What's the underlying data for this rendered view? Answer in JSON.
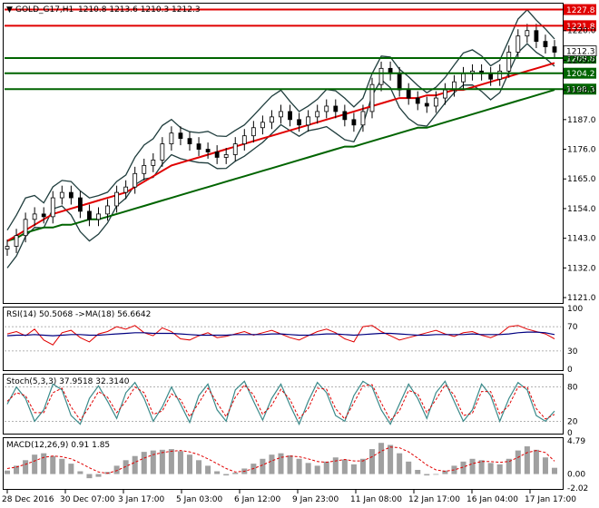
{
  "header": {
    "symbol": "GOLD_G17,H1",
    "ohlc": "1210.8 1213.6 1210.3 1212.3"
  },
  "colors": {
    "ma_red": "#e00000",
    "ma_green": "#006400",
    "bands": "#1f3d3d",
    "candles": "#000000",
    "rsi_line": "#e00000",
    "rsi_ma": "#000080",
    "stoch_main": "#3a8a8a",
    "stoch_signal": "#e00000",
    "macd_hist": "#a0a0a0",
    "macd_signal": "#e00000"
  },
  "levels": {
    "red": [
      {
        "value": 1227.8,
        "label": "1227.8"
      },
      {
        "value": 1221.8,
        "label": "1221.8"
      }
    ],
    "green": [
      {
        "value": 1209.8,
        "label": "1209.8"
      },
      {
        "value": 1204.2,
        "label": "1204.2"
      },
      {
        "value": 1198.3,
        "label": "1198.3"
      }
    ],
    "current_price": "1212.3"
  },
  "chart_data": [
    {
      "type": "line",
      "name": "price",
      "y_ticks": [
        "1220.0",
        "1209.0",
        "1198.0",
        "1187.0",
        "1176.0",
        "1165.0",
        "1154.0",
        "1143.0",
        "1132.0",
        "1121.0"
      ],
      "ylim": [
        1119,
        1230
      ],
      "x_labels": [
        "28 Dec 2016",
        "30 Dec 07:00",
        "3 Jan 17:00",
        "5 Jan 03:00",
        "6 Jan 12:00",
        "9 Jan 23:00",
        "11 Jan 08:00",
        "12 Jan 17:00",
        "16 Jan 04:00",
        "17 Jan 17:00"
      ],
      "close": [
        1140,
        1144,
        1150,
        1152,
        1151,
        1158,
        1160,
        1158,
        1153,
        1150,
        1152,
        1155,
        1160,
        1162,
        1167,
        1170,
        1172,
        1178,
        1182,
        1180,
        1178,
        1176,
        1175,
        1173,
        1174,
        1178,
        1181,
        1184,
        1186,
        1188,
        1190,
        1187,
        1185,
        1188,
        1190,
        1192,
        1190,
        1187,
        1185,
        1190,
        1200,
        1206,
        1204,
        1198,
        1195,
        1193,
        1192,
        1195,
        1198,
        1201,
        1204,
        1205,
        1204,
        1202,
        1205,
        1212,
        1218,
        1220,
        1216,
        1214,
        1212
      ],
      "ma_red": [
        1142,
        1144,
        1146,
        1148,
        1150,
        1152,
        1153,
        1154,
        1155,
        1156,
        1157,
        1158,
        1159,
        1160,
        1162,
        1164,
        1166,
        1168,
        1170,
        1171,
        1172,
        1173,
        1174,
        1175,
        1176,
        1177,
        1178,
        1179,
        1180,
        1181,
        1182,
        1183,
        1184,
        1185,
        1186,
        1187,
        1188,
        1189,
        1190,
        1191,
        1192,
        1193,
        1194,
        1195,
        1195,
        1195,
        1196,
        1196,
        1197,
        1198,
        1198,
        1199,
        1200,
        1201,
        1202,
        1203,
        1204,
        1205,
        1206,
        1207,
        1208
      ],
      "ma_green": [
        1142,
        1143,
        1145,
        1146,
        1147,
        1147,
        1148,
        1148,
        1149,
        1150,
        1150,
        1151,
        1152,
        1153,
        1154,
        1155,
        1156,
        1157,
        1158,
        1159,
        1160,
        1161,
        1162,
        1163,
        1164,
        1165,
        1166,
        1167,
        1168,
        1169,
        1170,
        1171,
        1172,
        1173,
        1174,
        1175,
        1176,
        1177,
        1177,
        1178,
        1179,
        1180,
        1181,
        1182,
        1183,
        1184,
        1184,
        1185,
        1186,
        1187,
        1188,
        1189,
        1190,
        1191,
        1192,
        1193,
        1194,
        1195,
        1196,
        1197,
        1198
      ]
    },
    {
      "type": "line",
      "name": "rsi",
      "label": "RSI(14) 50.5068 ->MA(18) 56.6642",
      "y_ticks": [
        "100",
        "70",
        "30",
        "0"
      ],
      "ylim": [
        0,
        100
      ],
      "values": [
        58,
        62,
        55,
        66,
        48,
        40,
        60,
        64,
        52,
        45,
        58,
        62,
        70,
        66,
        72,
        60,
        55,
        68,
        62,
        50,
        48,
        55,
        60,
        52,
        54,
        58,
        62,
        56,
        60,
        64,
        58,
        52,
        48,
        55,
        62,
        66,
        60,
        50,
        45,
        70,
        72,
        62,
        55,
        48,
        52,
        56,
        60,
        64,
        58,
        54,
        60,
        62,
        56,
        52,
        58,
        70,
        72,
        66,
        62,
        58,
        50
      ],
      "ma": [
        55,
        56,
        56,
        57,
        56,
        55,
        56,
        57,
        57,
        56,
        56,
        57,
        58,
        59,
        60,
        60,
        59,
        59,
        59,
        58,
        57,
        56,
        56,
        56,
        56,
        57,
        57,
        57,
        57,
        58,
        58,
        57,
        56,
        56,
        57,
        58,
        58,
        57,
        56,
        57,
        58,
        59,
        59,
        58,
        57,
        56,
        56,
        57,
        57,
        57,
        57,
        58,
        57,
        57,
        57,
        58,
        60,
        61,
        61,
        60,
        57
      ]
    },
    {
      "type": "line",
      "name": "stochastic",
      "label": "Stoch(5,3,3) 37.9518 32.3140",
      "y_ticks": [
        "80",
        "20",
        "0"
      ],
      "ylim": [
        0,
        100
      ],
      "main": [
        50,
        80,
        60,
        20,
        40,
        85,
        75,
        30,
        15,
        60,
        82,
        55,
        25,
        70,
        88,
        60,
        20,
        45,
        80,
        50,
        18,
        65,
        85,
        40,
        20,
        75,
        90,
        55,
        22,
        60,
        85,
        48,
        15,
        55,
        88,
        70,
        30,
        20,
        65,
        90,
        80,
        40,
        15,
        50,
        85,
        60,
        25,
        70,
        90,
        55,
        20,
        40,
        85,
        65,
        20,
        60,
        88,
        75,
        30,
        20,
        38
      ],
      "signal": [
        55,
        70,
        65,
        35,
        35,
        70,
        78,
        45,
        22,
        45,
        72,
        62,
        35,
        55,
        80,
        70,
        32,
        38,
        68,
        58,
        28,
        52,
        78,
        52,
        28,
        62,
        84,
        66,
        32,
        48,
        76,
        58,
        25,
        42,
        78,
        76,
        42,
        24,
        52,
        82,
        84,
        52,
        22,
        38,
        74,
        68,
        35,
        58,
        84,
        66,
        30,
        34,
        72,
        72,
        32,
        48,
        80,
        80,
        42,
        24,
        32
      ]
    },
    {
      "type": "bar",
      "name": "macd",
      "label": "MACD(12,26,9) 0.91 1.85",
      "y_ticks": [
        "4.79",
        "0.00",
        "-2.02"
      ],
      "ylim": [
        -2.02,
        4.79
      ],
      "histogram": [
        0.5,
        1.2,
        2.0,
        2.8,
        3.0,
        2.6,
        2.2,
        1.5,
        0.4,
        -0.6,
        -0.4,
        0.3,
        1.2,
        2.0,
        2.6,
        3.2,
        3.4,
        3.5,
        3.6,
        3.3,
        2.8,
        2.0,
        1.2,
        0.4,
        -0.2,
        0.2,
        0.8,
        1.5,
        2.2,
        2.8,
        3.0,
        2.7,
        2.2,
        1.6,
        1.2,
        1.8,
        2.4,
        2.1,
        1.4,
        2.2,
        3.6,
        4.5,
        4.2,
        3.0,
        1.8,
        0.6,
        -0.2,
        -0.1,
        0.5,
        1.2,
        1.8,
        2.2,
        2.0,
        1.6,
        1.4,
        2.2,
        3.4,
        4.0,
        3.5,
        2.4,
        0.9
      ],
      "signal": [
        0.8,
        1.0,
        1.4,
        1.9,
        2.4,
        2.6,
        2.5,
        2.2,
        1.6,
        0.9,
        0.3,
        0.1,
        0.5,
        1.1,
        1.7,
        2.3,
        2.8,
        3.1,
        3.3,
        3.4,
        3.2,
        2.8,
        2.2,
        1.5,
        0.8,
        0.3,
        0.4,
        0.8,
        1.3,
        1.9,
        2.4,
        2.6,
        2.5,
        2.2,
        1.8,
        1.7,
        1.9,
        2.1,
        1.9,
        1.9,
        2.5,
        3.3,
        3.9,
        3.8,
        3.2,
        2.3,
        1.3,
        0.6,
        0.4,
        0.6,
        1.0,
        1.5,
        1.8,
        1.8,
        1.7,
        1.8,
        2.4,
        3.1,
        3.4,
        3.1,
        1.85
      ]
    }
  ]
}
